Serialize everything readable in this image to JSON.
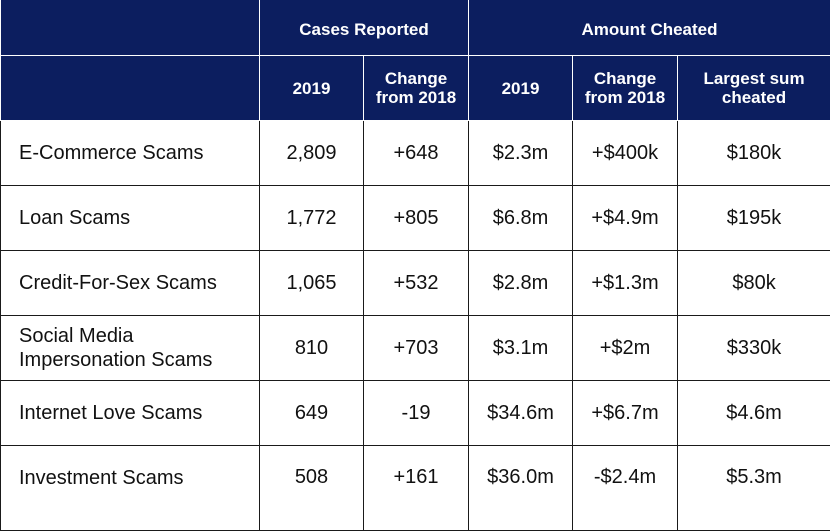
{
  "chart_data": {
    "type": "table",
    "group_headers": [
      "Cases Reported",
      "Amount Cheated"
    ],
    "columns": [
      "2019",
      "Change\nfrom 2018",
      "2019",
      "Change\nfrom 2018",
      "Largest sum\ncheated"
    ],
    "rows": [
      {
        "category": "E-Commerce Scams",
        "values": [
          "2,809",
          "+648",
          "$2.3m",
          "+$400k",
          "$180k"
        ]
      },
      {
        "category": "Loan Scams",
        "values": [
          "1,772",
          "+805",
          "$6.8m",
          "+$4.9m",
          "$195k"
        ]
      },
      {
        "category": "Credit-For-Sex Scams",
        "values": [
          "1,065",
          "+532",
          "$2.8m",
          "+$1.3m",
          "$80k"
        ]
      },
      {
        "category": "Social Media\nImpersonation Scams",
        "values": [
          "810",
          "+703",
          "$3.1m",
          "+$2m",
          "$330k"
        ]
      },
      {
        "category": "Internet Love Scams",
        "values": [
          "649",
          "-19",
          "$34.6m",
          "+$6.7m",
          "$4.6m"
        ]
      },
      {
        "category": "Investment Scams",
        "values": [
          "508",
          "+161",
          "$36.0m",
          "-$2.4m",
          "$5.3m"
        ]
      }
    ]
  }
}
